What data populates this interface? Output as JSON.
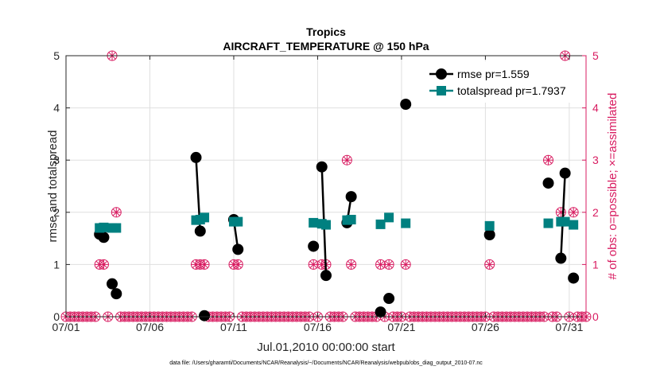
{
  "chart_data": {
    "type": "line",
    "title": "Tropics",
    "subtitle": "AIRCRAFT_TEMPERATURE @ 150 hPa",
    "xlabel": "Jul.01,2010 00:00:00 start",
    "ylabel": "rmse and totalspread",
    "ylabel_right": "# of obs: o=possible; ×=assimilated",
    "footnote": "data file: /Users/gharamti/Documents/NCAR/Reanalysis/~/Documents/NCAR/Reanalysis/webpub/obs_diag_output_2010-07.nc",
    "xlim": [
      1,
      32
    ],
    "ylim": [
      0,
      5
    ],
    "ylim_right": [
      0,
      5
    ],
    "x_ticks": [
      1,
      6,
      11,
      16,
      21,
      26,
      31
    ],
    "x_tick_labels": [
      "07/01",
      "07/06",
      "07/11",
      "07/16",
      "07/21",
      "07/26",
      "07/31"
    ],
    "y_ticks": [
      0,
      1,
      2,
      3,
      4,
      5
    ],
    "y_tick_labels": [
      "0",
      "1",
      "2",
      "3",
      "4",
      "5"
    ],
    "y_ticks_right": [
      0,
      1,
      2,
      3,
      4,
      5
    ],
    "y_tick_labels_right": [
      "0",
      "1",
      "2",
      "3",
      "4",
      "5"
    ],
    "grid": true,
    "legend_position": "top-right",
    "series": [
      {
        "name": "rmse pr=1.559",
        "color": "#000000",
        "marker": "circle",
        "segments": [
          [
            [
              3.0,
              1.58
            ],
            [
              3.25,
              1.52
            ]
          ],
          [
            [
              3.75,
              0.63
            ],
            [
              4.0,
              0.44
            ]
          ],
          [
            [
              8.75,
              3.05
            ],
            [
              9.0,
              1.64
            ]
          ],
          [
            [
              9.25,
              0.02
            ]
          ],
          [
            [
              11.0,
              1.86
            ],
            [
              11.25,
              1.29
            ]
          ],
          [
            [
              15.75,
              1.35
            ]
          ],
          [
            [
              16.25,
              2.87
            ],
            [
              16.5,
              0.79
            ]
          ],
          [
            [
              17.75,
              1.8
            ],
            [
              18.0,
              2.3
            ]
          ],
          [
            [
              19.75,
              0.09
            ]
          ],
          [
            [
              20.25,
              0.35
            ]
          ],
          [
            [
              21.25,
              4.07
            ]
          ],
          [
            [
              26.25,
              1.57
            ]
          ],
          [
            [
              29.75,
              2.56
            ]
          ],
          [
            [
              30.5,
              1.12
            ],
            [
              30.75,
              2.75
            ]
          ],
          [
            [
              31.25,
              0.74
            ]
          ]
        ]
      },
      {
        "name": "totalspread pr=1.7937",
        "color": "#008080",
        "marker": "square",
        "segments": [
          [
            [
              3.0,
              1.7
            ],
            [
              3.25,
              1.71
            ]
          ],
          [
            [
              3.75,
              1.7
            ],
            [
              4.0,
              1.7
            ]
          ],
          [
            [
              8.75,
              1.85
            ],
            [
              9.0,
              1.86
            ]
          ],
          [
            [
              9.25,
              1.9
            ]
          ],
          [
            [
              11.0,
              1.82
            ],
            [
              11.25,
              1.82
            ]
          ],
          [
            [
              15.75,
              1.8
            ]
          ],
          [
            [
              16.25,
              1.78
            ],
            [
              16.5,
              1.76
            ]
          ],
          [
            [
              17.75,
              1.85
            ],
            [
              18.0,
              1.86
            ]
          ],
          [
            [
              19.75,
              1.77
            ]
          ],
          [
            [
              20.25,
              1.9
            ]
          ],
          [
            [
              21.25,
              1.79
            ]
          ],
          [
            [
              26.25,
              1.74
            ]
          ],
          [
            [
              29.75,
              1.79
            ]
          ],
          [
            [
              30.5,
              1.82
            ],
            [
              30.75,
              1.82
            ]
          ],
          [
            [
              31.25,
              1.76
            ]
          ]
        ]
      }
    ],
    "obs_counts": {
      "name": "# of obs",
      "color": "#d81b60",
      "x_start": 1.0,
      "x_step": 0.25,
      "nonzero": [
        {
          "x": 3.0,
          "possible": 1,
          "assimilated": 1
        },
        {
          "x": 3.25,
          "possible": 1,
          "assimilated": 1
        },
        {
          "x": 3.75,
          "possible": 5,
          "assimilated": 5
        },
        {
          "x": 4.0,
          "possible": 2,
          "assimilated": 2
        },
        {
          "x": 8.75,
          "possible": 1,
          "assimilated": 1
        },
        {
          "x": 9.0,
          "possible": 1,
          "assimilated": 1
        },
        {
          "x": 9.25,
          "possible": 1,
          "assimilated": 1
        },
        {
          "x": 11.0,
          "possible": 1,
          "assimilated": 1
        },
        {
          "x": 11.25,
          "possible": 1,
          "assimilated": 1
        },
        {
          "x": 15.75,
          "possible": 1,
          "assimilated": 1
        },
        {
          "x": 16.25,
          "possible": 1,
          "assimilated": 1
        },
        {
          "x": 16.5,
          "possible": 1,
          "assimilated": 1
        },
        {
          "x": 17.75,
          "possible": 3,
          "assimilated": 3
        },
        {
          "x": 18.0,
          "possible": 1,
          "assimilated": 1
        },
        {
          "x": 19.75,
          "possible": 1,
          "assimilated": 1
        },
        {
          "x": 20.25,
          "possible": 1,
          "assimilated": 1
        },
        {
          "x": 21.25,
          "possible": 1,
          "assimilated": 1
        },
        {
          "x": 26.25,
          "possible": 1,
          "assimilated": 1
        },
        {
          "x": 29.75,
          "possible": 3,
          "assimilated": 3
        },
        {
          "x": 30.5,
          "possible": 2,
          "assimilated": 2
        },
        {
          "x": 30.75,
          "possible": 5,
          "assimilated": 5
        },
        {
          "x": 31.25,
          "possible": 2,
          "assimilated": 2
        }
      ]
    }
  }
}
